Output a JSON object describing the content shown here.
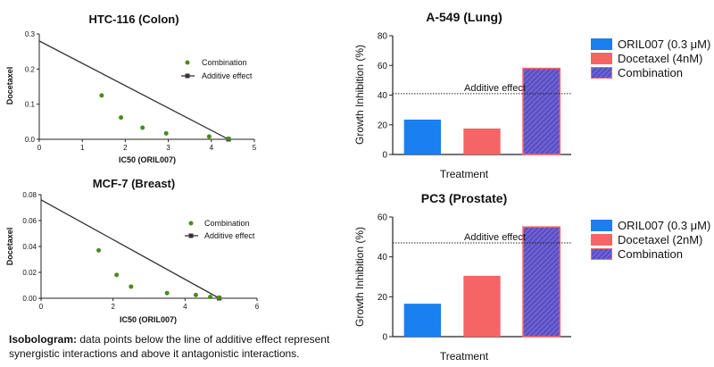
{
  "colors": {
    "oril": "#1a7ff0",
    "docetaxel": "#f56565",
    "combination_fill": "#5b4fc4",
    "combination_stroke": "#f56565",
    "combination_point": "#4a8a1c",
    "additive_line": "#333333"
  },
  "caption": {
    "bold": "Isobologram:",
    "text": " data points below the line of additive effect represent synergistic interactions  and above it antagonistic interactions."
  },
  "chart_data": [
    {
      "id": "htc116",
      "type": "scatter",
      "title": "HTC-116 (Colon)",
      "xlabel": "IC50 (ORIL007)",
      "ylabel": "Docetaxel",
      "xlim": [
        0,
        5
      ],
      "ylim": [
        0,
        0.3
      ],
      "xticks": [
        "0",
        "1",
        "2",
        "3",
        "4",
        "5"
      ],
      "yticks": [
        "0.0",
        "0.1",
        "0.2",
        "0.3"
      ],
      "legend": [
        "Combination",
        "Additive effect"
      ],
      "additive_line": {
        "x": [
          0,
          4.4
        ],
        "y": [
          0.28,
          0
        ]
      },
      "points": {
        "x": [
          1.45,
          1.9,
          2.4,
          2.95,
          3.95,
          4.4
        ],
        "y": [
          0.125,
          0.062,
          0.033,
          0.017,
          0.008,
          0.002
        ]
      }
    },
    {
      "id": "mcf7",
      "type": "scatter",
      "title": "MCF-7 (Breast)",
      "xlabel": "IC50 (ORIL007)",
      "ylabel": "Docetaxel",
      "xlim": [
        0,
        6
      ],
      "ylim": [
        0,
        0.08
      ],
      "xticks": [
        "0",
        "2",
        "4",
        "6"
      ],
      "yticks": [
        "0.00",
        "0.02",
        "0.04",
        "0.06",
        "0.08"
      ],
      "legend": [
        "Combination",
        "Additive effect"
      ],
      "additive_line": {
        "x": [
          0,
          4.95
        ],
        "y": [
          0.076,
          0
        ]
      },
      "points": {
        "x": [
          1.6,
          2.1,
          2.5,
          3.5,
          4.3,
          4.7,
          4.95
        ],
        "y": [
          0.037,
          0.018,
          0.009,
          0.004,
          0.0025,
          0.001,
          0.0005
        ]
      }
    },
    {
      "id": "a549",
      "type": "bar",
      "title": "A-549 (Lung)",
      "xlabel": "Treatment",
      "ylabel": "Growth Inhibition (%)",
      "ylim": [
        0,
        80
      ],
      "yticks": [
        "0",
        "20",
        "40",
        "60",
        "80"
      ],
      "categories": [
        "ORIL007 (0.3 μM)",
        "Docetaxel (4nM)",
        "Combination"
      ],
      "values": [
        23.5,
        17.5,
        58
      ],
      "additive_effect": 41,
      "additive_label": "Additive effect"
    },
    {
      "id": "pc3",
      "type": "bar",
      "title": "PC3 (Prostate)",
      "xlabel": "Treatment",
      "ylabel": "Growth Inhibition (%)",
      "ylim": [
        0,
        60
      ],
      "yticks": [
        "0",
        "20",
        "40",
        "60"
      ],
      "categories": [
        "ORIL007 (0.3 μM)",
        "Docetaxel (2nM)",
        "Combination"
      ],
      "values": [
        16.5,
        30.5,
        55
      ],
      "additive_effect": 47,
      "additive_label": "Additive effect"
    }
  ]
}
